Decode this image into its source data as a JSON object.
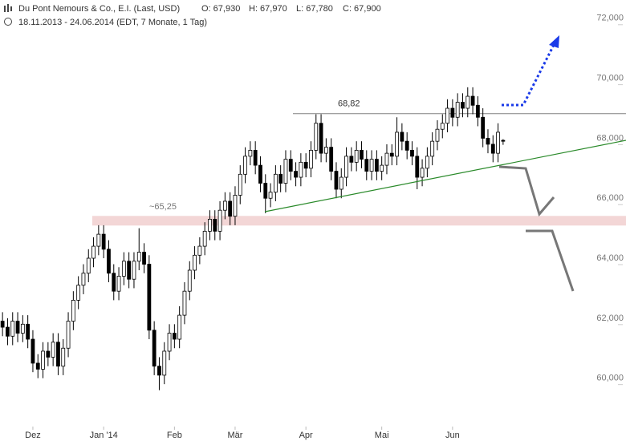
{
  "chart_data": {
    "type": "candlestick",
    "title": "Du Pont Nemours & Co., E.I. (Last, USD)",
    "ohlc_labels": [
      "O: 67,930",
      "H: 67,970",
      "L: 67,780",
      "C: 67,900"
    ],
    "subtitle": "18.11.2013 - 24.06.2014 (EDT, 7 Monate, 1 Tag)",
    "xlim": [
      -0.5,
      111.4
    ],
    "xticks": [
      {
        "value": 6,
        "label": "Dez"
      },
      {
        "value": 20,
        "label": "Jan '14"
      },
      {
        "value": 34,
        "label": "Feb"
      },
      {
        "value": 46,
        "label": "Mär"
      },
      {
        "value": 60,
        "label": "Apr"
      },
      {
        "value": 75,
        "label": "Mai"
      },
      {
        "value": 89,
        "label": "Jun"
      }
    ],
    "ylim": [
      58.44,
      72.61
    ],
    "yticks": [
      {
        "value": 60,
        "label": "60,000"
      },
      {
        "value": 62,
        "label": "62,000"
      },
      {
        "value": 64,
        "label": "64,000"
      },
      {
        "value": 66,
        "label": "66,000"
      },
      {
        "value": 68,
        "label": "68,000"
      },
      {
        "value": 70,
        "label": "70,000"
      },
      {
        "value": 72,
        "label": "72,000"
      }
    ],
    "up_color": "#ffffff",
    "down_color": "#000000",
    "open": [
      61.9,
      61.7,
      61.4,
      61.9,
      61.5,
      61.8,
      61.3,
      60.5,
      60.3,
      60.9,
      60.7,
      61.2,
      60.4,
      61.0,
      61.9,
      62.6,
      63.1,
      63.5,
      64.0,
      64.4,
      64.8,
      64.3,
      63.5,
      62.9,
      63.4,
      63.9,
      63.3,
      63.9,
      64.2,
      63.8,
      61.6,
      60.4,
      60.1,
      60.9,
      61.5,
      61.3,
      62.1,
      62.9,
      63.6,
      64.1,
      64.4,
      64.9,
      65.3,
      64.9,
      65.6,
      65.9,
      65.4,
      66.1,
      66.8,
      67.4,
      67.6,
      67.1,
      66.5,
      66.0,
      66.2,
      66.8,
      66.5,
      67.3,
      66.9,
      66.7,
      67.2,
      67.0,
      67.6,
      68.5,
      67.5,
      67.7,
      66.9,
      66.3,
      66.7,
      67.4,
      67.2,
      67.6,
      67.3,
      66.9,
      67.3,
      66.9,
      67.1,
      67.5,
      67.4,
      68.2,
      67.9,
      67.6,
      67.4,
      66.7,
      67.0,
      67.4,
      67.9,
      68.3,
      68.5,
      69.0,
      68.7,
      69.2,
      69.0,
      69.4,
      69.1,
      68.7,
      68.0,
      67.8,
      67.5,
      67.93
    ],
    "high": [
      62.2,
      62.0,
      62.2,
      62.2,
      62.1,
      62.1,
      61.6,
      60.8,
      61.2,
      61.2,
      61.5,
      61.5,
      61.3,
      62.2,
      62.9,
      63.4,
      63.8,
      64.3,
      64.7,
      65.1,
      65.1,
      64.6,
      63.8,
      63.7,
      64.2,
      64.2,
      64.2,
      65.0,
      64.5,
      64.1,
      61.9,
      60.7,
      61.2,
      61.8,
      61.8,
      62.4,
      63.2,
      63.9,
      64.4,
      64.7,
      65.2,
      65.6,
      65.6,
      65.9,
      66.2,
      66.2,
      66.4,
      67.1,
      67.7,
      67.9,
      67.9,
      67.4,
      66.8,
      66.5,
      67.1,
      67.1,
      67.6,
      67.6,
      67.2,
      67.5,
      67.5,
      67.9,
      68.8,
      68.8,
      68.0,
      68.0,
      67.2,
      67.0,
      67.7,
      67.7,
      67.9,
      67.9,
      67.6,
      67.6,
      67.6,
      67.4,
      67.8,
      67.8,
      68.7,
      68.5,
      68.2,
      67.9,
      67.7,
      67.3,
      67.7,
      68.2,
      68.6,
      68.8,
      69.3,
      69.3,
      69.5,
      69.5,
      69.7,
      69.7,
      69.4,
      69.0,
      68.3,
      68.1,
      68.5,
      67.97
    ],
    "low": [
      61.4,
      61.1,
      61.1,
      61.2,
      61.2,
      61.0,
      60.2,
      60.0,
      60.0,
      60.4,
      60.4,
      60.1,
      60.1,
      60.7,
      61.6,
      62.3,
      62.8,
      63.2,
      63.7,
      64.1,
      64.0,
      63.2,
      62.6,
      62.6,
      63.1,
      63.0,
      63.0,
      63.6,
      63.5,
      61.3,
      60.1,
      59.6,
      59.8,
      60.6,
      61.0,
      61.0,
      61.8,
      62.6,
      63.3,
      63.8,
      64.1,
      64.6,
      64.6,
      64.6,
      65.3,
      65.1,
      65.1,
      65.8,
      66.5,
      67.1,
      66.8,
      66.2,
      65.5,
      65.7,
      65.9,
      66.2,
      66.2,
      66.6,
      66.4,
      66.4,
      66.7,
      66.7,
      67.3,
      67.2,
      67.2,
      66.6,
      66.0,
      66.0,
      66.4,
      66.9,
      66.9,
      67.0,
      66.6,
      66.6,
      66.6,
      66.6,
      66.8,
      67.1,
      67.1,
      67.6,
      67.3,
      67.1,
      66.3,
      66.4,
      66.7,
      67.1,
      67.6,
      68.0,
      68.2,
      68.4,
      68.4,
      68.7,
      68.7,
      68.8,
      68.4,
      67.7,
      67.5,
      67.2,
      67.2,
      67.78
    ],
    "close": [
      61.7,
      61.4,
      61.9,
      61.5,
      61.8,
      61.3,
      60.5,
      60.3,
      60.9,
      60.7,
      61.2,
      60.4,
      61.0,
      61.9,
      62.6,
      63.1,
      63.5,
      64.0,
      64.4,
      64.8,
      64.3,
      63.5,
      62.9,
      63.4,
      63.9,
      63.3,
      63.9,
      64.2,
      63.8,
      61.6,
      60.4,
      60.1,
      60.9,
      61.5,
      61.3,
      62.1,
      62.9,
      63.6,
      64.1,
      64.4,
      64.9,
      65.3,
      64.9,
      65.6,
      65.9,
      65.4,
      66.1,
      66.8,
      67.4,
      67.6,
      67.1,
      66.5,
      66.0,
      66.2,
      66.8,
      66.5,
      67.3,
      66.9,
      66.7,
      67.2,
      67.0,
      67.6,
      68.5,
      67.5,
      67.7,
      66.9,
      66.3,
      66.7,
      67.4,
      67.2,
      67.6,
      67.3,
      66.9,
      67.3,
      66.9,
      67.1,
      67.5,
      67.4,
      68.2,
      67.9,
      67.6,
      67.4,
      66.7,
      67.0,
      67.4,
      67.9,
      68.3,
      68.5,
      69.0,
      68.7,
      69.2,
      69.0,
      69.4,
      69.1,
      68.7,
      68.0,
      67.8,
      67.5,
      68.2,
      67.9
    ],
    "resistance": {
      "value": 68.82,
      "label": "68,82",
      "color": "#808080"
    },
    "support": {
      "value": 65.25,
      "label": "~65,25",
      "color": "#f3d6d6"
    }
  }
}
